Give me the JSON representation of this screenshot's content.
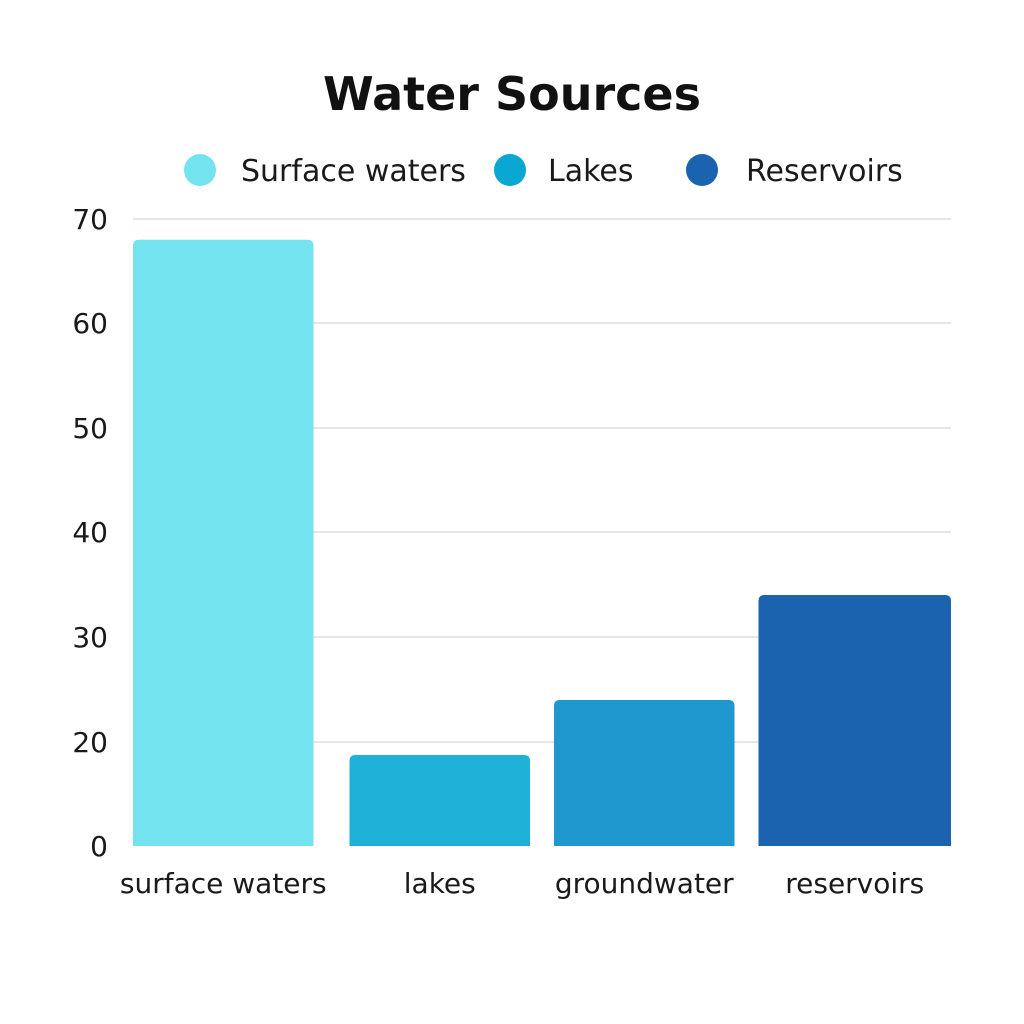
{
  "chart_data": {
    "type": "bar",
    "title": "Water Sources",
    "categories": [
      "surface waters",
      "lakes",
      "groundwater",
      "reservoirs"
    ],
    "values": [
      68,
      17.5,
      24,
      34
    ],
    "bar_colors": [
      "#74e3f0",
      "#1fb2d9",
      "#1f97cf",
      "#1c63af"
    ],
    "legend": [
      {
        "label": "Surface waters",
        "color": "#74e3f0"
      },
      {
        "label": "Lakes",
        "color": "#0aa7d2"
      },
      {
        "label": "Reservoirs",
        "color": "#1c63af"
      }
    ],
    "legend_position": "top",
    "y_ticks": [
      0,
      20,
      30,
      40,
      50,
      60,
      70
    ],
    "ylim": [
      0,
      70
    ],
    "grid": true
  }
}
